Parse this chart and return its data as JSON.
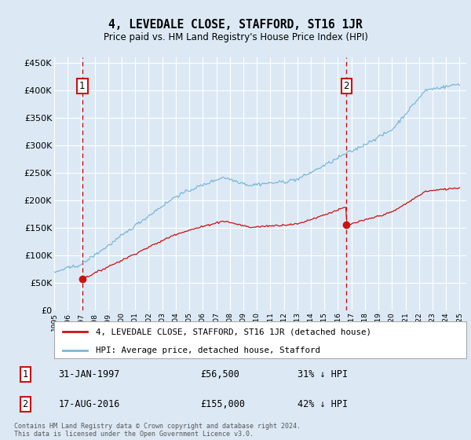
{
  "title": "4, LEVEDALE CLOSE, STAFFORD, ST16 1JR",
  "subtitle": "Price paid vs. HM Land Registry's House Price Index (HPI)",
  "legend_line1": "4, LEVEDALE CLOSE, STAFFORD, ST16 1JR (detached house)",
  "legend_line2": "HPI: Average price, detached house, Stafford",
  "footnote": "Contains HM Land Registry data © Crown copyright and database right 2024.\nThis data is licensed under the Open Government Licence v3.0.",
  "annotation1_date": "31-JAN-1997",
  "annotation1_price": "£56,500",
  "annotation1_hpi": "31% ↓ HPI",
  "annotation2_date": "17-AUG-2016",
  "annotation2_price": "£155,000",
  "annotation2_hpi": "42% ↓ HPI",
  "sale1_year": 1997.08,
  "sale1_value": 56500,
  "sale2_year": 2016.63,
  "sale2_value": 155000,
  "hpi_color": "#7ab8d9",
  "price_color": "#cc1111",
  "bg_color": "#dce9f5",
  "plot_bg": "#dce9f5",
  "grid_color": "#ffffff",
  "dashed_line_color": "#cc1111",
  "ylim_min": 0,
  "ylim_max": 460000,
  "xlim_min": 1995.0,
  "xlim_max": 2025.5,
  "xlabel_years": [
    1995,
    1996,
    1997,
    1998,
    1999,
    2000,
    2001,
    2002,
    2003,
    2004,
    2005,
    2006,
    2007,
    2008,
    2009,
    2010,
    2011,
    2012,
    2013,
    2014,
    2015,
    2016,
    2017,
    2018,
    2019,
    2020,
    2021,
    2022,
    2023,
    2024,
    2025
  ],
  "ytick_values": [
    0,
    50000,
    100000,
    150000,
    200000,
    250000,
    300000,
    350000,
    400000,
    450000
  ],
  "ytick_labels": [
    "£0",
    "£50K",
    "£100K",
    "£150K",
    "£200K",
    "£250K",
    "£300K",
    "£350K",
    "£400K",
    "£450K"
  ]
}
